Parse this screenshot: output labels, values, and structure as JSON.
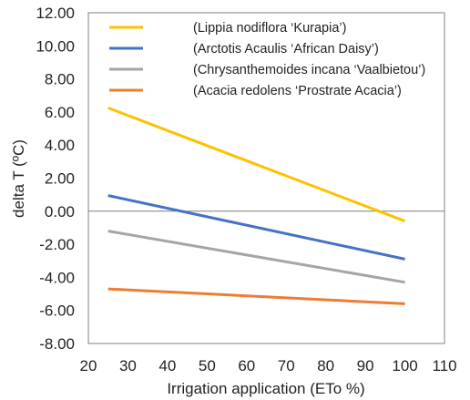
{
  "chart_data": {
    "type": "line",
    "title": "",
    "xlabel": "Irrigation application (ETo %)",
    "ylabel": "delta T (ºC)",
    "xlim": [
      20,
      110
    ],
    "ylim": [
      -8,
      12
    ],
    "x_ticks": [
      "20",
      "30",
      "40",
      "50",
      "60",
      "70",
      "80",
      "90",
      "100",
      "110"
    ],
    "y_ticks": [
      "12.00",
      "10.00",
      "8.00",
      "6.00",
      "4.00",
      "2.00",
      "0.00",
      "-2.00",
      "-4.00",
      "-6.00",
      "-8.00"
    ],
    "grid": false,
    "legend_position": "top-right",
    "series": [
      {
        "name": "(Lippia nodiflora ‘Kurapia’)",
        "color": "#FFC000",
        "x": [
          25,
          100
        ],
        "y": [
          6.25,
          -0.6
        ]
      },
      {
        "name": "(Arctotis Acaulis ‘African Daisy’)",
        "color": "#4472C4",
        "x": [
          25,
          100
        ],
        "y": [
          0.95,
          -2.9
        ]
      },
      {
        "name": "(Chrysanthemoides incana ‘Vaalbietou’)",
        "color": "#A5A5A5",
        "x": [
          25,
          100
        ],
        "y": [
          -1.2,
          -4.3
        ]
      },
      {
        "name": "(Acacia redolens ‘Prostrate Acacia’)",
        "color": "#ED7D31",
        "x": [
          25,
          100
        ],
        "y": [
          -4.7,
          -5.6
        ]
      }
    ]
  }
}
